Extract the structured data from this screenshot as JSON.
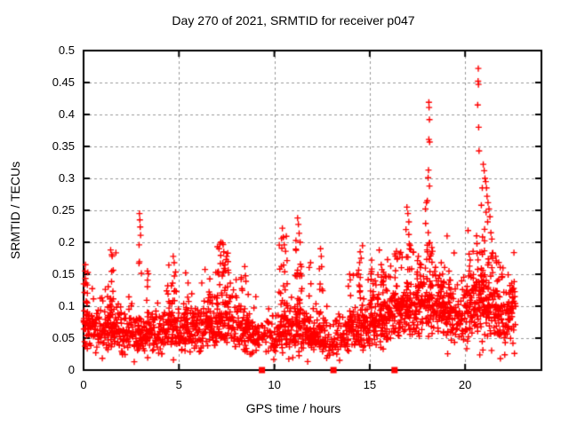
{
  "chart_data": {
    "type": "scatter",
    "title": "Day 270 of 2021, SRMTID for receiver p047",
    "xlabel": "GPS time / hours",
    "ylabel": "SRMTID / TECUs",
    "xlim": [
      0,
      24
    ],
    "ylim": [
      0,
      0.5
    ],
    "xticks": [
      0,
      5,
      10,
      15,
      20
    ],
    "xtick_labels": [
      "0",
      "5",
      "10",
      "15",
      "20"
    ],
    "yticks": [
      0,
      0.05,
      0.1,
      0.15,
      0.2,
      0.25,
      0.3,
      0.35,
      0.4,
      0.45,
      0.5
    ],
    "ytick_labels": [
      "0",
      "0.05",
      "0.1",
      "0.15",
      "0.2",
      "0.25",
      "0.3",
      "0.35",
      "0.4",
      "0.45",
      "0.5"
    ],
    "grid": {
      "style": "dashed",
      "color": "#999999",
      "on": true
    },
    "legend": "none",
    "marker": {
      "shape": "plus",
      "color": "#ff0000",
      "size": 7
    },
    "background": "#ffffff",
    "border_color": "#000000",
    "gap_markers": {
      "shape": "filled-square",
      "color": "#ff0000",
      "y": 0,
      "x": [
        9.35,
        13.1,
        16.3
      ]
    },
    "scatter_model": {
      "seed": 1337,
      "t_start": 0.02,
      "t_end": 22.65,
      "step": 0.0125,
      "noise_sigma": 0.3,
      "low_tail_prob": 0.04,
      "sparse_ranges": [
        [
          9.2,
          10.1,
          0.35
        ],
        [
          12.7,
          13.7,
          0.3
        ]
      ],
      "baseline_profile": [
        [
          0,
          0.07
        ],
        [
          1,
          0.068
        ],
        [
          2,
          0.06
        ],
        [
          3,
          0.06
        ],
        [
          4,
          0.062
        ],
        [
          5,
          0.065
        ],
        [
          6,
          0.068
        ],
        [
          7,
          0.078
        ],
        [
          7.6,
          0.08
        ],
        [
          8.2,
          0.068
        ],
        [
          9,
          0.058
        ],
        [
          9.6,
          0.05
        ],
        [
          10.2,
          0.06
        ],
        [
          10.8,
          0.065
        ],
        [
          11.3,
          0.068
        ],
        [
          11.8,
          0.055
        ],
        [
          12.3,
          0.06
        ],
        [
          13,
          0.05
        ],
        [
          13.6,
          0.055
        ],
        [
          14.2,
          0.065
        ],
        [
          15,
          0.075
        ],
        [
          15.8,
          0.08
        ],
        [
          16.5,
          0.09
        ],
        [
          17.2,
          0.1
        ],
        [
          18,
          0.105
        ],
        [
          18.6,
          0.1
        ],
        [
          19.2,
          0.09
        ],
        [
          19.8,
          0.08
        ],
        [
          20.4,
          0.1
        ],
        [
          21,
          0.095
        ],
        [
          21.6,
          0.09
        ],
        [
          22.1,
          0.075
        ],
        [
          22.7,
          0.1
        ]
      ],
      "clusters": [
        [
          0.15,
          0.15,
          0.16,
          20
        ],
        [
          1.45,
          0.25,
          0.185,
          25
        ],
        [
          2.95,
          0.1,
          0.205,
          12
        ],
        [
          3.35,
          0.08,
          0.155,
          8
        ],
        [
          4.65,
          0.25,
          0.175,
          20
        ],
        [
          5.35,
          0.15,
          0.15,
          10
        ],
        [
          6.6,
          0.15,
          0.15,
          10
        ],
        [
          7.25,
          0.35,
          0.195,
          40
        ],
        [
          8.45,
          0.2,
          0.16,
          14
        ],
        [
          10.45,
          0.25,
          0.215,
          28
        ],
        [
          11.25,
          0.2,
          0.21,
          28
        ],
        [
          11.9,
          0.1,
          0.165,
          10
        ],
        [
          12.45,
          0.1,
          0.185,
          10
        ],
        [
          14.0,
          0.15,
          0.15,
          12
        ],
        [
          14.55,
          0.15,
          0.18,
          16
        ],
        [
          15.15,
          0.2,
          0.17,
          18
        ],
        [
          15.85,
          0.3,
          0.17,
          30
        ],
        [
          16.5,
          0.2,
          0.185,
          20
        ],
        [
          17.05,
          0.15,
          0.235,
          22
        ],
        [
          17.55,
          0.2,
          0.175,
          16
        ],
        [
          18.1,
          0.2,
          0.21,
          26
        ],
        [
          18.75,
          0.25,
          0.165,
          20
        ],
        [
          19.2,
          0.15,
          0.15,
          10
        ],
        [
          20.3,
          0.25,
          0.165,
          22
        ],
        [
          20.75,
          0.15,
          0.21,
          16
        ],
        [
          21.1,
          0.25,
          0.2,
          30
        ],
        [
          21.65,
          0.25,
          0.175,
          22
        ],
        [
          22.4,
          0.25,
          0.12,
          14
        ]
      ],
      "peak_points": [
        [
          0.08,
          0.155
        ],
        [
          0.1,
          0.165
        ],
        [
          1.42,
          0.188
        ],
        [
          1.5,
          0.178
        ],
        [
          2.91,
          0.196
        ],
        [
          2.93,
          0.245
        ],
        [
          2.95,
          0.235
        ],
        [
          2.97,
          0.224
        ],
        [
          2.99,
          0.211
        ],
        [
          3.35,
          0.155
        ],
        [
          4.7,
          0.178
        ],
        [
          4.75,
          0.168
        ],
        [
          5.35,
          0.152
        ],
        [
          7.1,
          0.19
        ],
        [
          7.2,
          0.2
        ],
        [
          7.35,
          0.185
        ],
        [
          7.5,
          0.178
        ],
        [
          8.45,
          0.162
        ],
        [
          10.42,
          0.222
        ],
        [
          10.47,
          0.208
        ],
        [
          10.52,
          0.196
        ],
        [
          11.22,
          0.238
        ],
        [
          11.26,
          0.228
        ],
        [
          11.3,
          0.214
        ],
        [
          11.35,
          0.2
        ],
        [
          11.9,
          0.168
        ],
        [
          12.42,
          0.19
        ],
        [
          12.46,
          0.178
        ],
        [
          13.95,
          0.15
        ],
        [
          14.5,
          0.185
        ],
        [
          14.55,
          0.175
        ],
        [
          15.1,
          0.172
        ],
        [
          15.6,
          0.165
        ],
        [
          16.4,
          0.186
        ],
        [
          16.45,
          0.175
        ],
        [
          16.9,
          0.22
        ],
        [
          16.95,
          0.255
        ],
        [
          17.0,
          0.245
        ],
        [
          17.05,
          0.232
        ],
        [
          17.55,
          0.178
        ],
        [
          17.92,
          0.252
        ],
        [
          17.97,
          0.262
        ],
        [
          18.1,
          0.419
        ],
        [
          18.11,
          0.411
        ],
        [
          18.13,
          0.392
        ],
        [
          18.1,
          0.361
        ],
        [
          18.14,
          0.357
        ],
        [
          18.08,
          0.313
        ],
        [
          18.06,
          0.301
        ],
        [
          18.13,
          0.288
        ],
        [
          18.02,
          0.265
        ],
        [
          18.75,
          0.168
        ],
        [
          20.69,
          0.472
        ],
        [
          20.68,
          0.452
        ],
        [
          20.7,
          0.447
        ],
        [
          20.66,
          0.415
        ],
        [
          20.71,
          0.38
        ],
        [
          20.73,
          0.343
        ],
        [
          20.85,
          0.258
        ],
        [
          20.9,
          0.285
        ],
        [
          20.95,
          0.322
        ],
        [
          21.0,
          0.312
        ],
        [
          21.04,
          0.3
        ],
        [
          21.08,
          0.295
        ],
        [
          21.12,
          0.285
        ],
        [
          21.15,
          0.272
        ],
        [
          21.2,
          0.262
        ],
        [
          21.25,
          0.252
        ],
        [
          21.3,
          0.24
        ],
        [
          21.1,
          0.247
        ],
        [
          21.18,
          0.232
        ],
        [
          21.35,
          0.215
        ],
        [
          21.4,
          0.205
        ],
        [
          20.6,
          0.21
        ],
        [
          20.62,
          0.198
        ],
        [
          21.6,
          0.178
        ],
        [
          21.65,
          0.168
        ],
        [
          22.5,
          0.122
        ],
        [
          22.55,
          0.128
        ],
        [
          22.6,
          0.115
        ]
      ]
    }
  }
}
